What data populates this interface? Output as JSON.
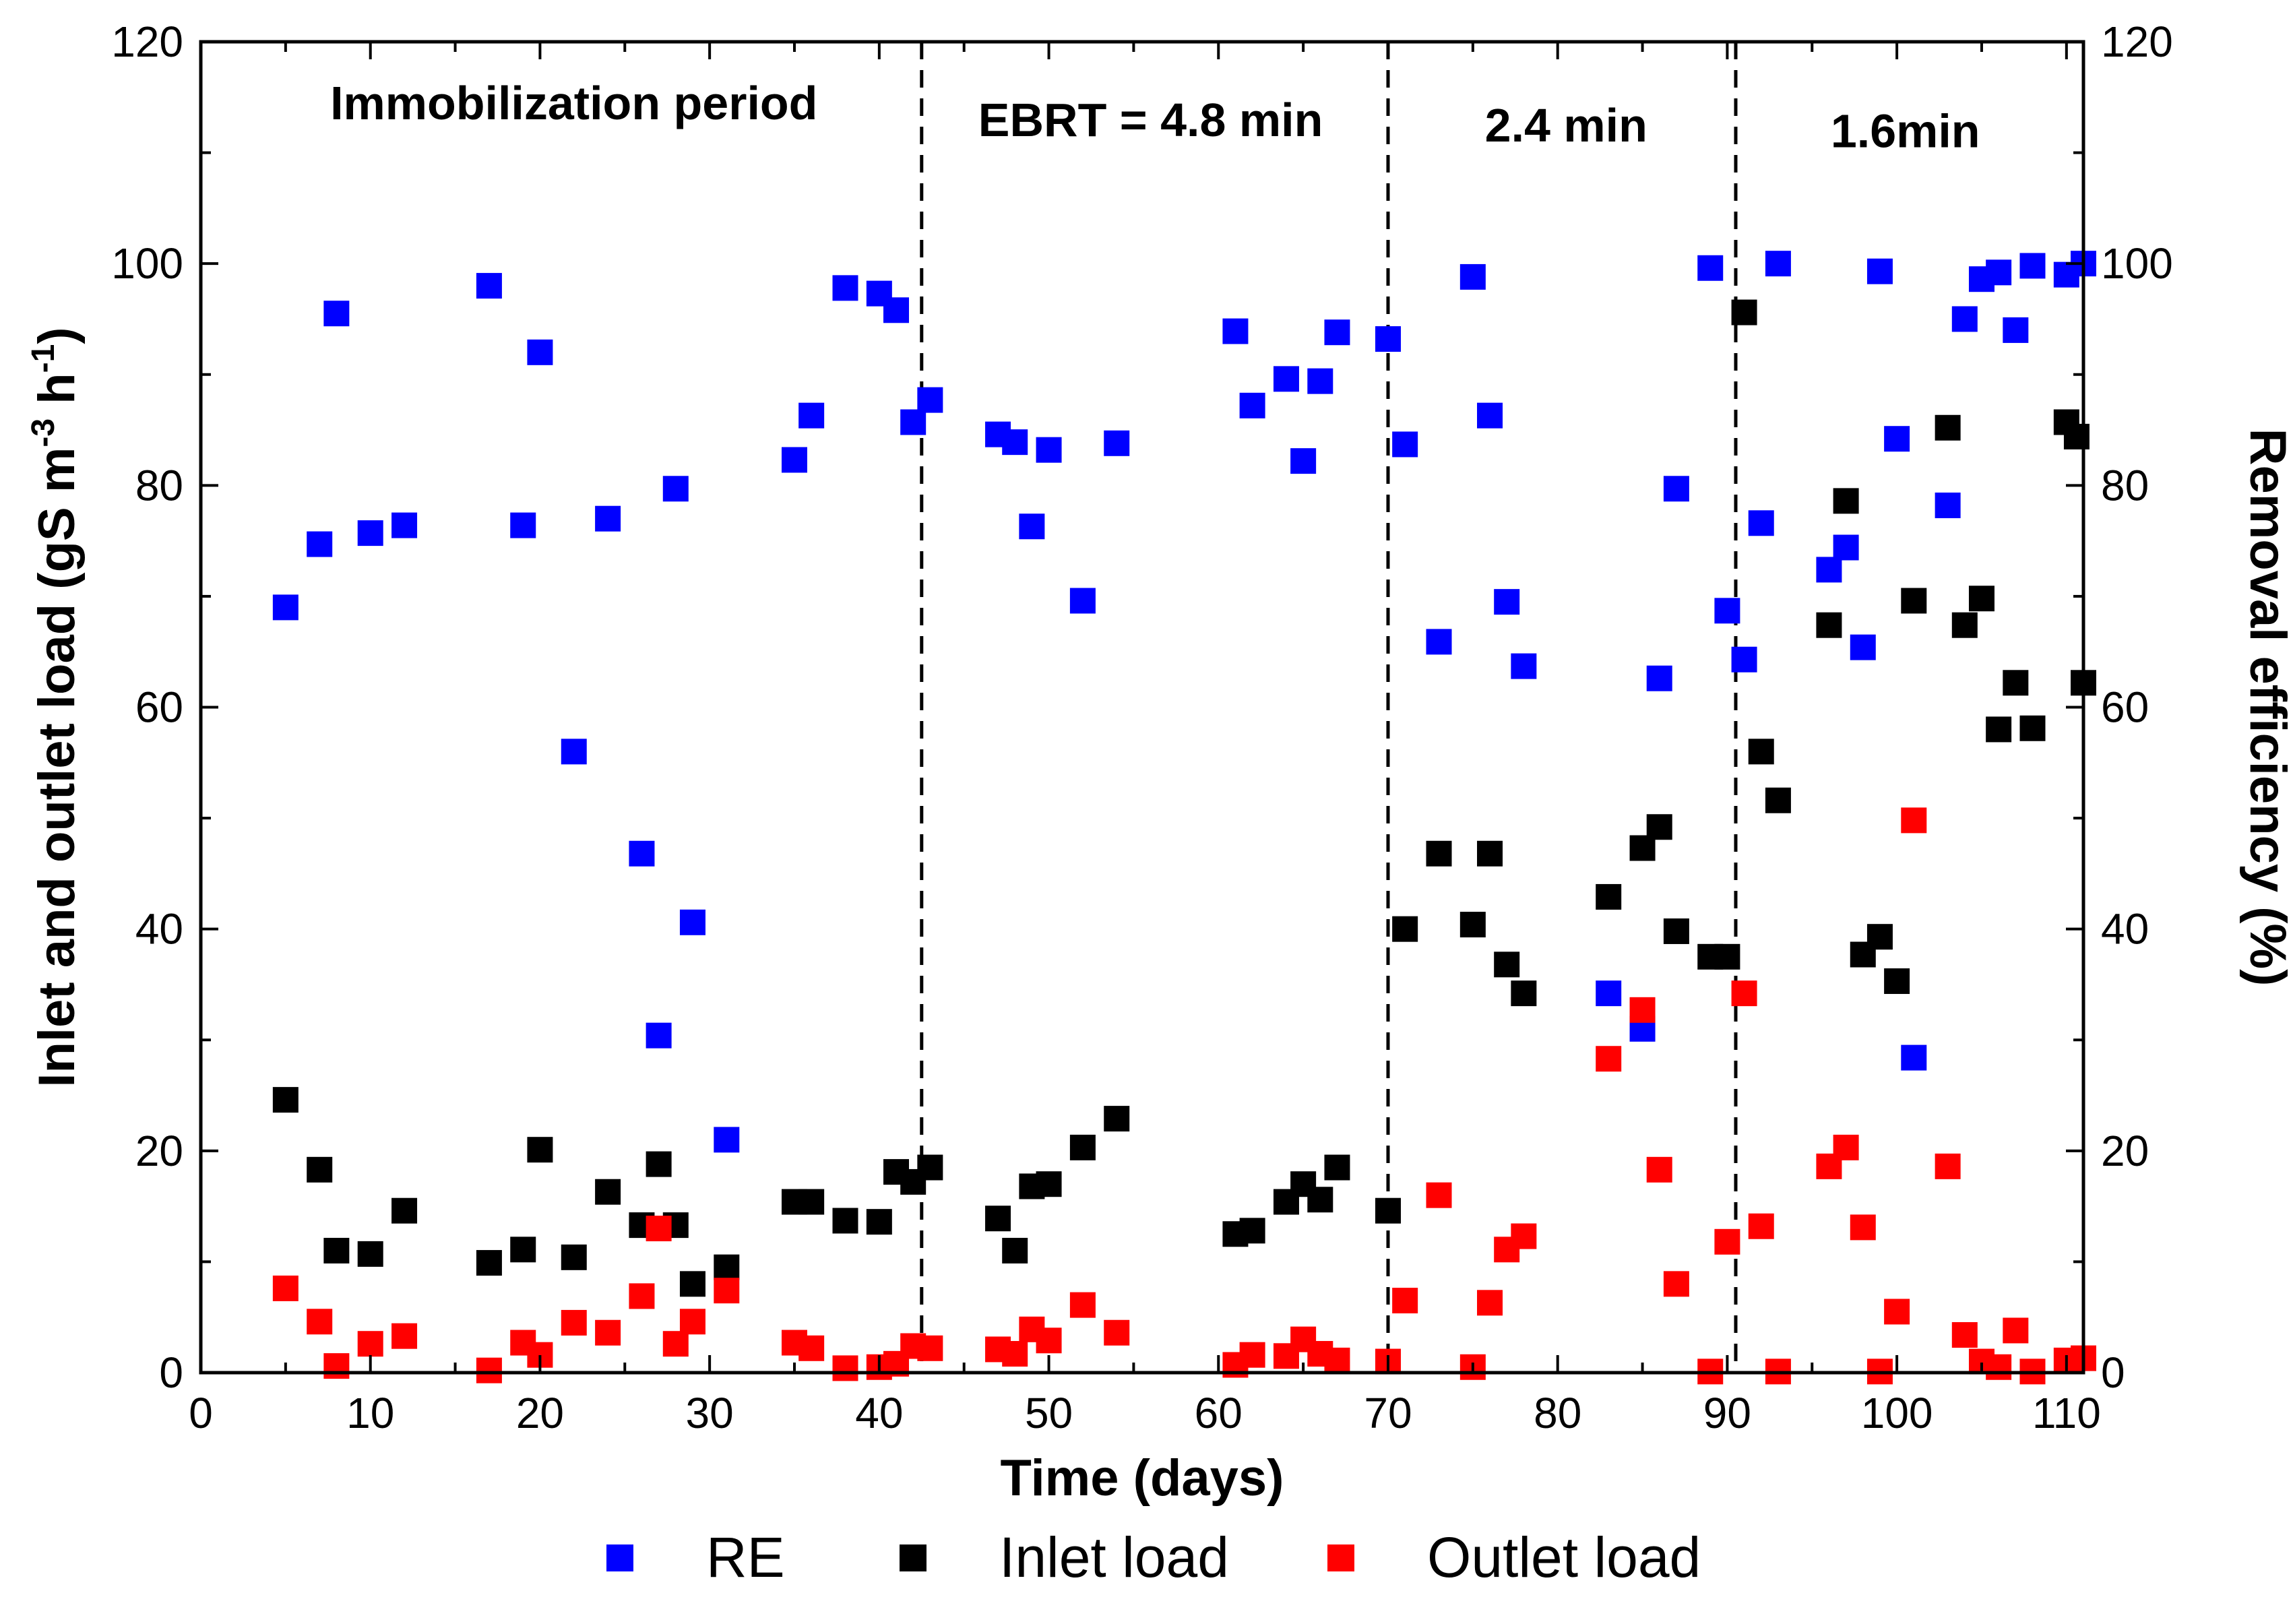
{
  "chart_data": {
    "type": "scatter",
    "xlabel": "Time (days)",
    "ylabel_left": {
      "main": "Inlet and outlet load (gS m",
      "sup1": "-3",
      "mid": " h",
      "sup2": "-1",
      "end": ")"
    },
    "ylabel_right": "Removal efficiency (%)",
    "xlim": [
      0,
      111
    ],
    "ylim_left": [
      0,
      120
    ],
    "ylim_right": [
      0,
      120
    ],
    "xticks": [
      "0",
      "10",
      "20",
      "30",
      "40",
      "50",
      "60",
      "70",
      "80",
      "90",
      "100",
      "110"
    ],
    "yticks_left": [
      "0",
      "20",
      "40",
      "60",
      "80",
      "100",
      "120"
    ],
    "yticks_right": [
      "0",
      "20",
      "40",
      "60",
      "80",
      "100",
      "120"
    ],
    "grid": false,
    "phase_boundaries": [
      42.5,
      70,
      90.5
    ],
    "annotations": [
      {
        "text": "Immobilization period",
        "x": 22,
        "y": 113
      },
      {
        "text": "EBRT = 4.8 min",
        "x": 56,
        "y": 111.5
      },
      {
        "text": "2.4 min",
        "x": 80.5,
        "y": 111
      },
      {
        "text": "1.6min",
        "x": 100.5,
        "y": 110.5
      }
    ],
    "series": [
      {
        "name": "RE",
        "axis": "right",
        "color": "#0000FF",
        "points": [
          [
            5,
            69
          ],
          [
            7,
            74.7
          ],
          [
            8,
            95.5
          ],
          [
            10,
            75.7
          ],
          [
            12,
            76.4
          ],
          [
            17,
            98
          ],
          [
            19,
            76.4
          ],
          [
            20,
            92
          ],
          [
            22,
            56
          ],
          [
            24,
            77
          ],
          [
            26,
            46.8
          ],
          [
            27,
            30.4
          ],
          [
            28,
            79.7
          ],
          [
            29,
            40.6
          ],
          [
            31,
            21
          ],
          [
            35,
            82.3
          ],
          [
            36,
            86.3
          ],
          [
            38,
            97.8
          ],
          [
            40,
            97.3
          ],
          [
            41,
            95.8
          ],
          [
            42,
            85.7
          ],
          [
            43,
            87.7
          ],
          [
            47,
            84.6
          ],
          [
            48,
            83.9
          ],
          [
            49,
            76.3
          ],
          [
            50,
            83.2
          ],
          [
            52,
            69.6
          ],
          [
            54,
            83.8
          ],
          [
            61,
            93.9
          ],
          [
            62,
            87.2
          ],
          [
            64,
            89.6
          ],
          [
            65,
            82.2
          ],
          [
            66,
            89.4
          ],
          [
            67,
            93.8
          ],
          [
            70,
            93.2
          ],
          [
            71,
            83.7
          ],
          [
            73,
            65.9
          ],
          [
            75,
            98.8
          ],
          [
            76,
            86.3
          ],
          [
            77,
            69.5
          ],
          [
            78,
            63.7
          ],
          [
            83,
            34.2
          ],
          [
            85,
            31
          ],
          [
            86,
            62.6
          ],
          [
            87,
            79.7
          ],
          [
            89,
            99.6
          ],
          [
            90,
            68.7
          ],
          [
            91,
            64.3
          ],
          [
            92,
            76.6
          ],
          [
            93,
            100
          ],
          [
            96,
            72.4
          ],
          [
            97,
            74.4
          ],
          [
            98,
            65.4
          ],
          [
            99,
            99.3
          ],
          [
            100,
            84.2
          ],
          [
            101,
            28.4
          ],
          [
            103,
            78.2
          ],
          [
            104,
            95
          ],
          [
            105,
            98.6
          ],
          [
            106,
            99.2
          ],
          [
            107,
            94
          ],
          [
            108,
            99.8
          ],
          [
            110,
            99
          ],
          [
            111,
            100
          ]
        ]
      },
      {
        "name": "Inlet load",
        "axis": "left",
        "color": "#000000",
        "points": [
          [
            5,
            24.6
          ],
          [
            7,
            18.3
          ],
          [
            8,
            11
          ],
          [
            10,
            10.7
          ],
          [
            12,
            14.6
          ],
          [
            17,
            9.9
          ],
          [
            19,
            11.1
          ],
          [
            20,
            20.1
          ],
          [
            22,
            10.4
          ],
          [
            24,
            16.3
          ],
          [
            26,
            13.3
          ],
          [
            27,
            18.8
          ],
          [
            28,
            13.3
          ],
          [
            29,
            8
          ],
          [
            31,
            9.5
          ],
          [
            35,
            15.4
          ],
          [
            36,
            15.4
          ],
          [
            38,
            13.7
          ],
          [
            40,
            13.6
          ],
          [
            41,
            18.1
          ],
          [
            42,
            17.2
          ],
          [
            43,
            18.5
          ],
          [
            47,
            13.9
          ],
          [
            48,
            11
          ],
          [
            49,
            16.8
          ],
          [
            50,
            17
          ],
          [
            52,
            20.3
          ],
          [
            54,
            22.9
          ],
          [
            61,
            12.5
          ],
          [
            62,
            12.8
          ],
          [
            64,
            15.4
          ],
          [
            65,
            17
          ],
          [
            66,
            15.6
          ],
          [
            67,
            18.5
          ],
          [
            70,
            14.6
          ],
          [
            71,
            40
          ],
          [
            73,
            46.8
          ],
          [
            75,
            40.4
          ],
          [
            76,
            46.8
          ],
          [
            77,
            36.8
          ],
          [
            78,
            34.2
          ],
          [
            83,
            42.9
          ],
          [
            85,
            47.3
          ],
          [
            86,
            49.2
          ],
          [
            87,
            39.8
          ],
          [
            89,
            37.5
          ],
          [
            90,
            37.5
          ],
          [
            91,
            95.6
          ],
          [
            92,
            56
          ],
          [
            93,
            51.6
          ],
          [
            96,
            67.4
          ],
          [
            97,
            78.6
          ],
          [
            98,
            37.7
          ],
          [
            99,
            39.3
          ],
          [
            100,
            35.3
          ],
          [
            101,
            69.6
          ],
          [
            103,
            85.2
          ],
          [
            104,
            67.4
          ],
          [
            105,
            69.8
          ],
          [
            106,
            58
          ],
          [
            107,
            62.2
          ],
          [
            108,
            58.1
          ],
          [
            110,
            85.7
          ],
          [
            110.6,
            84.4
          ],
          [
            111,
            62.2
          ]
        ]
      },
      {
        "name": "Outlet load",
        "axis": "left",
        "color": "#FF0000",
        "points": [
          [
            5,
            7.6
          ],
          [
            7,
            4.6
          ],
          [
            8,
            0.6
          ],
          [
            10,
            2.6
          ],
          [
            12,
            3.3
          ],
          [
            17,
            0.2
          ],
          [
            19,
            2.7
          ],
          [
            20,
            1.6
          ],
          [
            22,
            4.5
          ],
          [
            24,
            3.6
          ],
          [
            26,
            6.9
          ],
          [
            27,
            13
          ],
          [
            28,
            2.6
          ],
          [
            29,
            4.6
          ],
          [
            31,
            7.4
          ],
          [
            35,
            2.7
          ],
          [
            36,
            2.2
          ],
          [
            38,
            0.4
          ],
          [
            40,
            0.5
          ],
          [
            41,
            0.8
          ],
          [
            42,
            2.4
          ],
          [
            43,
            2.2
          ],
          [
            47,
            2.1
          ],
          [
            48,
            1.7
          ],
          [
            49,
            3.9
          ],
          [
            50,
            2.9
          ],
          [
            52,
            6.1
          ],
          [
            54,
            3.6
          ],
          [
            61,
            0.7
          ],
          [
            62,
            1.6
          ],
          [
            64,
            1.5
          ],
          [
            65,
            3
          ],
          [
            66,
            1.7
          ],
          [
            67,
            1.1
          ],
          [
            70,
            1
          ],
          [
            71,
            6.5
          ],
          [
            73,
            16
          ],
          [
            75,
            0.5
          ],
          [
            76,
            6.3
          ],
          [
            77,
            11.1
          ],
          [
            78,
            12.3
          ],
          [
            83,
            28.3
          ],
          [
            85,
            32.7
          ],
          [
            86,
            18.3
          ],
          [
            87,
            8
          ],
          [
            89,
            0.1
          ],
          [
            90,
            11.8
          ],
          [
            91,
            34.2
          ],
          [
            92,
            13.2
          ],
          [
            93,
            0.1
          ],
          [
            96,
            18.6
          ],
          [
            97,
            20.3
          ],
          [
            98,
            13.1
          ],
          [
            99,
            0.1
          ],
          [
            100,
            5.5
          ],
          [
            101,
            49.8
          ],
          [
            103,
            18.6
          ],
          [
            104,
            3.4
          ],
          [
            105,
            1
          ],
          [
            106,
            0.5
          ],
          [
            107,
            3.8
          ],
          [
            108,
            0.1
          ],
          [
            110,
            1.1
          ],
          [
            111,
            1.3
          ]
        ]
      }
    ],
    "legend": {
      "position": "bottom-center",
      "entries": [
        "RE",
        "Inlet load",
        "Outlet load"
      ]
    }
  }
}
